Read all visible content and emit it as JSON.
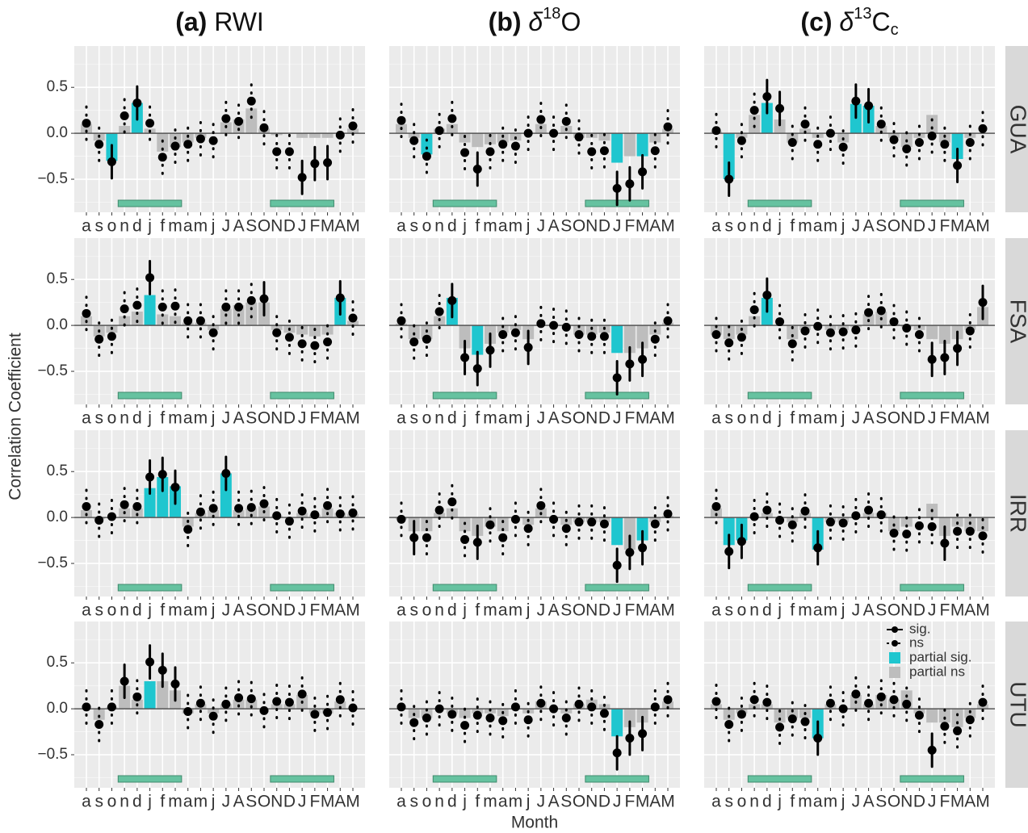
{
  "chart_data": {
    "type": "bar",
    "columns": [
      {
        "label": "(a)",
        "main": "RWI"
      },
      {
        "label": "(b)",
        "symbol": "δ",
        "sup": "18",
        "main": "O"
      },
      {
        "label": "(c)",
        "symbol": "δ",
        "sup": "13",
        "main": "C",
        "sub": "c"
      }
    ],
    "rows": [
      "GUA",
      "FSA",
      "IRR",
      "UTU"
    ],
    "ylabel": "Correlation Coefficient",
    "xlabel": "Month",
    "categories": [
      "a",
      "s",
      "o",
      "n",
      "d",
      "j",
      "f",
      "m",
      "a",
      "m",
      "j",
      "J",
      "A",
      "S",
      "O",
      "N",
      "D",
      "J",
      "F",
      "M",
      "A",
      "M"
    ],
    "season_months": [
      [
        3,
        7
      ],
      [
        15,
        19
      ]
    ],
    "ylim": [
      -0.86,
      0.95
    ],
    "yticks": [
      {
        "value": -0.5,
        "label": "−0.5"
      },
      {
        "value": 0,
        "label": "0.0"
      },
      0.5
    ],
    "grid": true,
    "ci_halfwidth": 0.18,
    "partial_sig_color": "#1fc6cf",
    "partial_ns_color": "#bdbdbd",
    "season_color": "#66c2a0",
    "legend": {
      "sig": "sig.",
      "ns": "ns",
      "partial_sig": "partial sig.",
      "partial_ns": "partial ns"
    },
    "panels": [
      [
        {
          "corr": [
            0.11,
            -0.12,
            -0.31,
            0.19,
            0.33,
            0.11,
            -0.26,
            -0.14,
            -0.12,
            -0.06,
            -0.08,
            0.16,
            0.13,
            0.35,
            0.06,
            -0.2,
            -0.2,
            -0.48,
            -0.33,
            -0.32,
            -0.02,
            0.08
          ],
          "partial": [
            0.1,
            -0.08,
            -0.3,
            0.08,
            0.33,
            0.05,
            -0.2,
            -0.15,
            -0.1,
            -0.05,
            0,
            0.12,
            0.15,
            0.27,
            0.05,
            -0.02,
            0,
            -0.05,
            -0.05,
            -0.05,
            0,
            0.05
          ],
          "sig_points": [
            2,
            4,
            17,
            18,
            19
          ],
          "sig_partial": [
            2,
            4
          ]
        },
        {
          "corr": [
            0.14,
            -0.08,
            -0.25,
            0.03,
            0.16,
            -0.21,
            -0.39,
            -0.2,
            -0.12,
            -0.14,
            0,
            0.15,
            0,
            0.13,
            -0.04,
            -0.2,
            -0.19,
            -0.6,
            -0.55,
            -0.42,
            -0.19,
            0.07
          ],
          "partial": [
            0.1,
            -0.05,
            -0.23,
            0.05,
            0.1,
            -0.1,
            -0.15,
            -0.12,
            -0.1,
            -0.08,
            0,
            0.1,
            0,
            0.08,
            -0.05,
            -0.05,
            -0.08,
            -0.32,
            -0.25,
            -0.25,
            -0.1,
            0.05
          ],
          "sig_points": [
            6,
            17,
            18,
            19
          ],
          "sig_partial": [
            2,
            17,
            19
          ]
        },
        {
          "corr": [
            0.03,
            -0.5,
            -0.08,
            0.25,
            0.4,
            0.27,
            -0.1,
            0.1,
            -0.12,
            0,
            -0.15,
            0.35,
            0.3,
            0.1,
            -0.07,
            -0.17,
            -0.1,
            -0.03,
            -0.12,
            -0.35,
            -0.1,
            0.05
          ],
          "partial": [
            0.02,
            -0.5,
            -0.05,
            0.2,
            0.33,
            0.15,
            -0.1,
            0.05,
            -0.05,
            0,
            -0.1,
            0.32,
            0.3,
            0.08,
            -0.05,
            -0.15,
            -0.05,
            0.2,
            -0.1,
            -0.28,
            -0.05,
            0
          ],
          "sig_points": [
            1,
            4,
            5,
            11,
            12,
            19
          ],
          "sig_partial": [
            1,
            4,
            11,
            12,
            19
          ]
        }
      ],
      [
        {
          "corr": [
            0.13,
            -0.15,
            -0.12,
            0.18,
            0.22,
            0.52,
            0.2,
            0.21,
            0.05,
            0.05,
            -0.08,
            0.2,
            0.2,
            0.27,
            0.29,
            -0.08,
            -0.13,
            -0.2,
            -0.22,
            -0.18,
            0.3,
            0.08
          ],
          "partial": [
            0.1,
            -0.12,
            -0.08,
            0.1,
            0.15,
            0.33,
            0.12,
            0.1,
            0.03,
            0.03,
            -0.05,
            0.18,
            0.22,
            0.25,
            0.25,
            -0.05,
            -0.08,
            -0.1,
            -0.12,
            -0.1,
            0.3,
            0.05
          ],
          "sig_points": [
            5,
            14,
            20
          ],
          "sig_partial": [
            5,
            20
          ]
        },
        {
          "corr": [
            0.05,
            -0.18,
            -0.15,
            0.15,
            0.27,
            -0.35,
            -0.47,
            -0.27,
            -0.1,
            -0.08,
            -0.24,
            0.02,
            0,
            -0.02,
            -0.1,
            -0.12,
            -0.12,
            -0.57,
            -0.42,
            -0.37,
            -0.15,
            0.05
          ],
          "partial": [
            0.02,
            -0.15,
            -0.15,
            0.1,
            0.3,
            -0.25,
            -0.32,
            -0.2,
            -0.08,
            -0.05,
            -0.15,
            0,
            0,
            0,
            -0.1,
            -0.1,
            -0.08,
            -0.3,
            -0.3,
            -0.25,
            -0.1,
            0.03
          ],
          "sig_points": [
            4,
            5,
            6,
            7,
            10,
            17,
            18,
            19
          ],
          "sig_partial": [
            4,
            6,
            17
          ]
        },
        {
          "corr": [
            -0.1,
            -0.19,
            -0.13,
            0.17,
            0.33,
            0.04,
            -0.2,
            -0.06,
            -0.01,
            -0.08,
            -0.07,
            -0.05,
            0.14,
            0.16,
            0.04,
            -0.03,
            -0.1,
            -0.37,
            -0.35,
            -0.25,
            -0.06,
            0.25
          ],
          "partial": [
            -0.1,
            -0.15,
            -0.1,
            0.1,
            0.3,
            0,
            -0.15,
            -0.05,
            0,
            -0.05,
            -0.05,
            -0.02,
            0.12,
            0.15,
            0.02,
            -0.02,
            -0.05,
            -0.15,
            -0.2,
            -0.15,
            -0.05,
            0.2
          ],
          "sig_points": [
            4,
            17,
            18,
            19,
            21
          ],
          "sig_partial": [
            4
          ]
        }
      ],
      [
        {
          "corr": [
            0.12,
            -0.03,
            0.01,
            0.14,
            0.12,
            0.44,
            0.47,
            0.33,
            -0.13,
            0.06,
            0.1,
            0.48,
            0.1,
            0.11,
            0.15,
            0.02,
            -0.04,
            0.07,
            0.03,
            0.13,
            0.04,
            0.05
          ],
          "partial": [
            0.08,
            -0.02,
            0,
            0.1,
            0.1,
            0.32,
            0.44,
            0.34,
            -0.1,
            0.05,
            0.08,
            0.48,
            0.08,
            0.1,
            0.12,
            0.02,
            0,
            0.05,
            0.03,
            0.1,
            0.05,
            0.04
          ],
          "sig_points": [
            5,
            6,
            7,
            11
          ],
          "sig_partial": [
            5,
            6,
            7,
            11
          ]
        },
        {
          "corr": [
            -0.02,
            -0.22,
            -0.22,
            0.08,
            0.17,
            -0.24,
            -0.27,
            -0.08,
            -0.22,
            -0.02,
            -0.12,
            0.13,
            -0.02,
            -0.12,
            -0.05,
            -0.05,
            -0.07,
            -0.52,
            -0.38,
            -0.33,
            -0.07,
            0.04
          ],
          "partial": [
            -0.02,
            -0.15,
            -0.15,
            0.05,
            0.1,
            -0.15,
            -0.2,
            -0.1,
            -0.15,
            0,
            -0.08,
            0.1,
            0,
            -0.08,
            -0.05,
            -0.05,
            -0.05,
            -0.3,
            -0.35,
            -0.25,
            -0.05,
            0.02
          ],
          "sig_points": [
            1,
            6,
            17,
            18,
            19
          ],
          "sig_partial": [
            17,
            19
          ]
        },
        {
          "corr": [
            0.12,
            -0.37,
            -0.26,
            0.01,
            0.08,
            -0.03,
            -0.08,
            0.07,
            -0.33,
            -0.05,
            -0.06,
            0.02,
            0.08,
            0.03,
            -0.17,
            -0.18,
            -0.09,
            -0.1,
            -0.28,
            -0.15,
            -0.15,
            -0.2
          ],
          "partial": [
            0.1,
            -0.3,
            -0.25,
            0,
            0.05,
            0,
            -0.05,
            0.05,
            -0.35,
            -0.05,
            -0.05,
            0,
            0.05,
            0.05,
            -0.15,
            -0.1,
            0,
            0.15,
            -0.2,
            -0.1,
            -0.15,
            -0.15
          ],
          "sig_points": [
            1,
            2,
            8,
            18
          ],
          "sig_partial": [
            1,
            2,
            8
          ]
        }
      ],
      [
        {
          "corr": [
            0.02,
            -0.17,
            0.02,
            0.3,
            0.13,
            0.51,
            0.42,
            0.27,
            -0.03,
            0.06,
            -0.08,
            0.05,
            0.12,
            0.11,
            -0.02,
            0.08,
            0.07,
            0.16,
            -0.06,
            -0.04,
            0.1,
            0.01
          ],
          "partial": [
            0,
            -0.12,
            0.02,
            0.25,
            0.1,
            0.3,
            0.3,
            0.2,
            -0.05,
            0.05,
            -0.05,
            0.05,
            0.1,
            0.1,
            0,
            0.05,
            0.05,
            0.15,
            -0.05,
            -0.05,
            0.08,
            0
          ],
          "sig_points": [
            3,
            5,
            6,
            7
          ],
          "sig_partial": [
            5
          ]
        },
        {
          "corr": [
            0.02,
            -0.15,
            -0.1,
            0,
            -0.06,
            -0.18,
            -0.07,
            -0.1,
            -0.13,
            0.02,
            -0.12,
            0.06,
            0,
            -0.1,
            0.05,
            0.02,
            -0.05,
            -0.48,
            -0.32,
            -0.27,
            0.02,
            0.1
          ],
          "partial": [
            0,
            -0.1,
            -0.1,
            0,
            -0.05,
            -0.1,
            -0.05,
            -0.05,
            -0.08,
            0,
            -0.05,
            0.08,
            0,
            -0.05,
            0.05,
            0.1,
            0.05,
            -0.3,
            -0.2,
            -0.15,
            0,
            0.08
          ],
          "sig_points": [
            17,
            18,
            19
          ],
          "sig_partial": [
            17
          ]
        },
        {
          "corr": [
            0.08,
            -0.17,
            -0.06,
            0.1,
            0.07,
            -0.2,
            -0.11,
            -0.14,
            -0.32,
            0.06,
            0,
            0.16,
            0.06,
            0.13,
            0.1,
            0.05,
            -0.07,
            -0.45,
            -0.19,
            -0.24,
            -0.12,
            0.07
          ],
          "partial": [
            0.05,
            -0.12,
            -0.05,
            0.05,
            0.05,
            -0.15,
            -0.1,
            -0.1,
            -0.32,
            0.05,
            0,
            0.15,
            0.05,
            0.15,
            0.1,
            0.2,
            -0.05,
            -0.15,
            -0.15,
            -0.2,
            -0.1,
            0.05
          ],
          "sig_points": [
            8,
            17
          ],
          "sig_partial": [
            8
          ]
        }
      ]
    ]
  }
}
